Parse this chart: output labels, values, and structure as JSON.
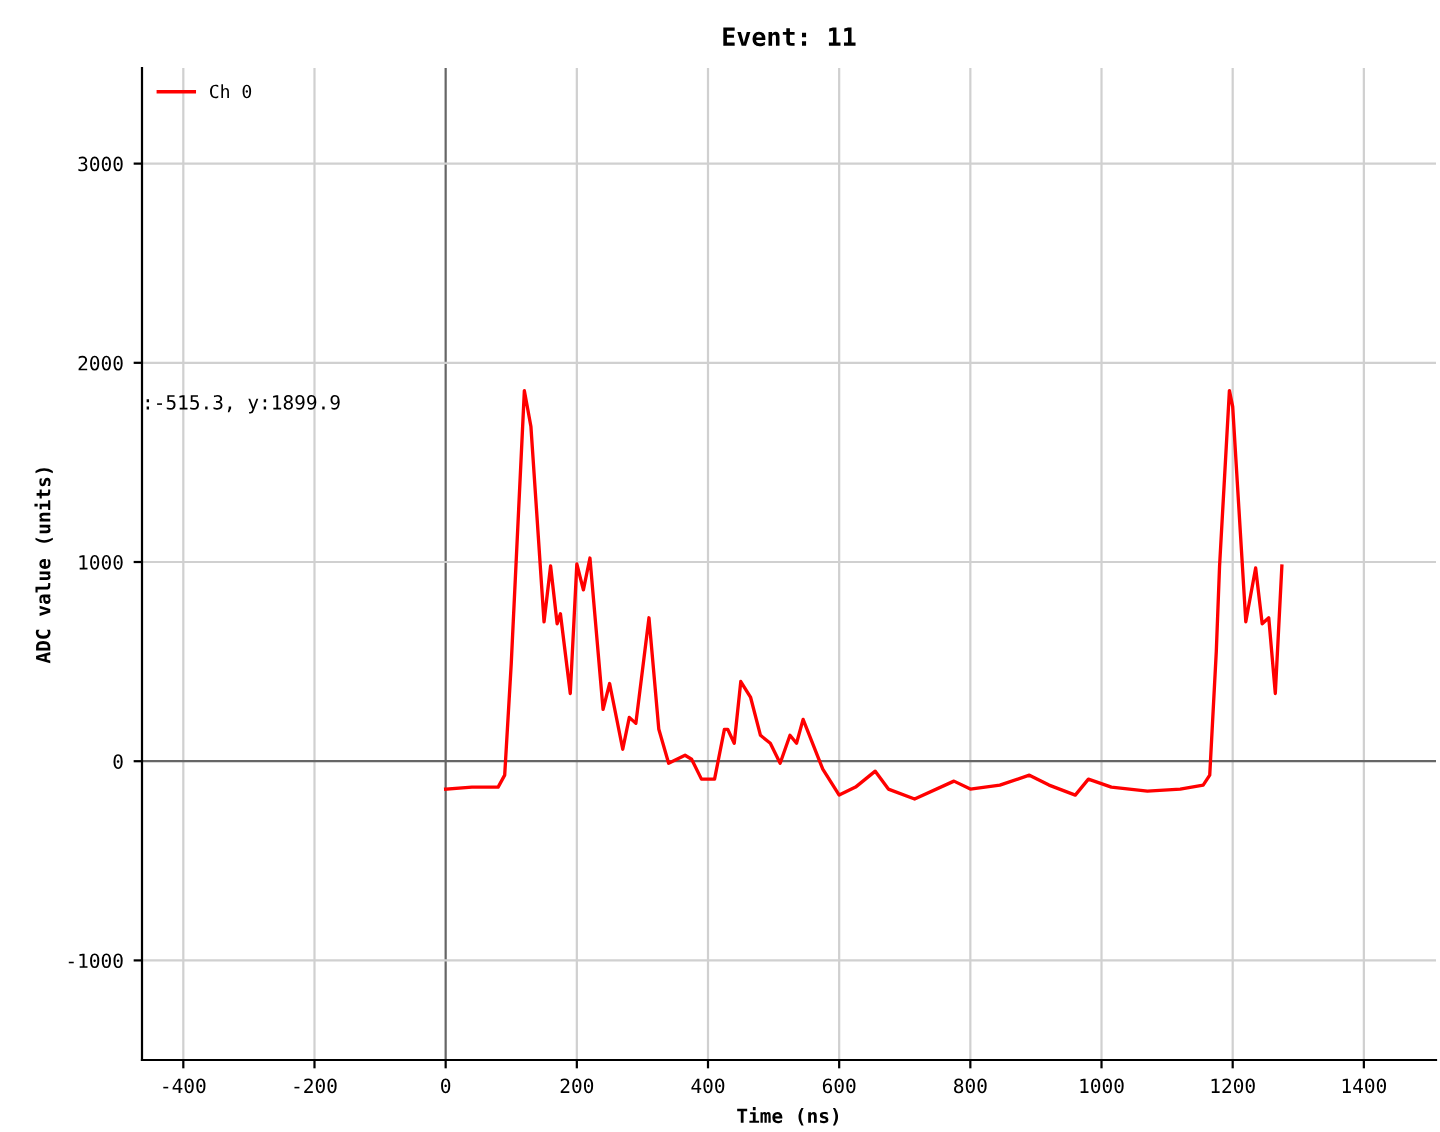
{
  "chart_data": {
    "type": "line",
    "title": "Event: 11",
    "xlabel": "Time (ns)",
    "ylabel": "ADC value (units)",
    "annotations": [
      ":-515.3, y:1899.9"
    ],
    "series": [
      {
        "name": "Ch 0",
        "color": "#ff0000",
        "x": [
          0,
          40,
          80,
          90,
          100,
          120,
          130,
          150,
          160,
          170,
          175,
          190,
          200,
          210,
          220,
          240,
          250,
          270,
          280,
          290,
          310,
          325,
          340,
          365,
          375,
          390,
          410,
          425,
          430,
          440,
          450,
          465,
          480,
          495,
          510,
          525,
          535,
          545,
          575,
          600,
          625,
          655,
          675,
          715,
          775,
          800,
          845,
          890,
          920,
          960,
          980,
          1015,
          1070,
          1120,
          1155,
          1165,
          1175,
          1180,
          1195,
          1200,
          1220,
          1235,
          1245,
          1255,
          1265,
          1275
        ],
        "values": [
          -140,
          -130,
          -130,
          -70,
          490,
          1860,
          1680,
          700,
          980,
          690,
          740,
          340,
          990,
          860,
          1020,
          260,
          390,
          60,
          220,
          190,
          720,
          160,
          -10,
          30,
          10,
          -90,
          -90,
          160,
          160,
          90,
          400,
          320,
          130,
          90,
          -10,
          130,
          90,
          210,
          -40,
          -170,
          -130,
          -50,
          -140,
          -190,
          -100,
          -140,
          -120,
          -70,
          -120,
          -170,
          -90,
          -130,
          -150,
          -140,
          -120,
          -70,
          550,
          980,
          1860,
          1780,
          700,
          970,
          690,
          720,
          340,
          980
        ]
      }
    ],
    "xlim": [
      -463,
      1510
    ],
    "ylim": [
      -1500,
      3480
    ],
    "xticks": [
      -400,
      -200,
      0,
      200,
      400,
      600,
      800,
      1000,
      1200,
      1400
    ],
    "yticks": [
      -1000,
      0,
      1000,
      2000,
      3000
    ],
    "grid": true,
    "legend": "top left",
    "line_style": "solid",
    "marker": "none"
  }
}
